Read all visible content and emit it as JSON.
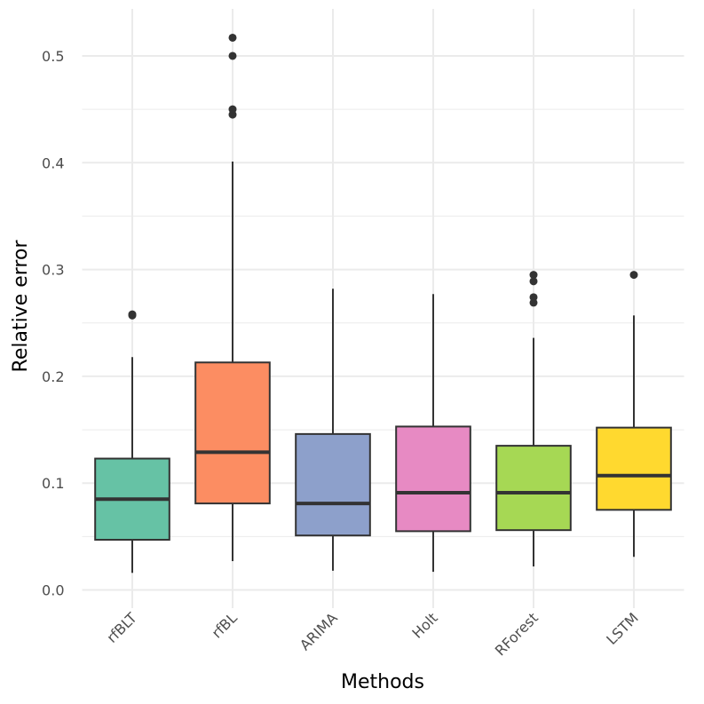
{
  "chart_data": {
    "type": "boxplot",
    "x_label": "Methods",
    "y_label": "Relative error",
    "categories": [
      "rfBLT",
      "rfBL",
      "ARIMA",
      "Holt",
      "RForest",
      "LSTM"
    ],
    "colors": [
      "#66c2a5",
      "#fc8d62",
      "#8da0cb",
      "#e78ac3",
      "#a6d854",
      "#ffd92f"
    ],
    "boxes": [
      {
        "min": 0.016,
        "q1": 0.047,
        "median": 0.085,
        "q3": 0.123,
        "max": 0.218,
        "outliers": [
          0.258,
          0.257
        ]
      },
      {
        "min": 0.027,
        "q1": 0.081,
        "median": 0.129,
        "q3": 0.213,
        "max": 0.401,
        "outliers": [
          0.445,
          0.45,
          0.5,
          0.517
        ]
      },
      {
        "min": 0.018,
        "q1": 0.051,
        "median": 0.081,
        "q3": 0.146,
        "max": 0.282,
        "outliers": []
      },
      {
        "min": 0.017,
        "q1": 0.055,
        "median": 0.091,
        "q3": 0.153,
        "max": 0.277,
        "outliers": []
      },
      {
        "min": 0.022,
        "q1": 0.056,
        "median": 0.091,
        "q3": 0.135,
        "max": 0.236,
        "outliers": [
          0.295,
          0.289,
          0.274,
          0.269
        ]
      },
      {
        "min": 0.031,
        "q1": 0.075,
        "median": 0.107,
        "q3": 0.152,
        "max": 0.257,
        "outliers": [
          0.295
        ]
      }
    ],
    "ylim": [
      -0.017,
      0.544
    ],
    "yticks": [
      {
        "value": 0,
        "label": "0.0"
      },
      0.1,
      0.2,
      0.3,
      0.4,
      0.5
    ],
    "minor_yticks": [
      0.05,
      0.15,
      0.25,
      0.35,
      0.45
    ],
    "grid": true
  }
}
